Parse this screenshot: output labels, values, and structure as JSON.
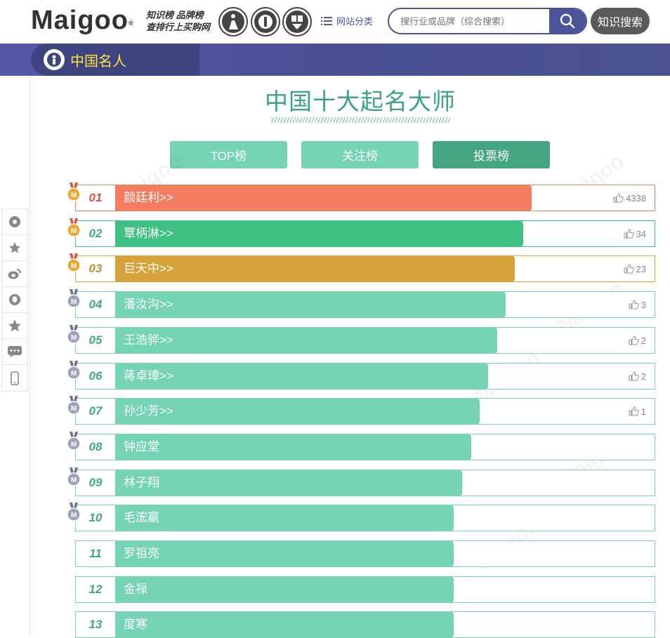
{
  "header": {
    "logo_text": "Maigoo",
    "logo_mark": "®",
    "slogan_line1": "知识榜  品牌榜",
    "slogan_line2": "查排行上买购网",
    "category_label": "网站分类",
    "search_placeholder": "搜行业或品牌（综合搜索）",
    "search_button_label": "知识搜索"
  },
  "nav": {
    "section_title": "中国名人"
  },
  "page": {
    "title": "中国十大起名大师",
    "tabs": [
      {
        "label": "TOP榜",
        "active": false
      },
      {
        "label": "关注榜",
        "active": false
      },
      {
        "label": "投票榜",
        "active": true
      }
    ]
  },
  "ranking": [
    {
      "rank": "01",
      "name": "颜廷利>>",
      "votes": "4338",
      "color": "#f47c61",
      "text_color": "#d9583d",
      "border": "#f47c61",
      "bar_fraction": 0.72,
      "medal": "gold"
    },
    {
      "rank": "02",
      "name": "覃柄淋>>",
      "votes": "34",
      "color": "#3ec182",
      "text_color": "#3ab07a",
      "border": "#3ec182",
      "bar_fraction": 0.705,
      "medal": "gold"
    },
    {
      "rank": "03",
      "name": "巨天中>>",
      "votes": "23",
      "color": "#d8a23b",
      "text_color": "#c58f2e",
      "border": "#d8a23b",
      "bar_fraction": 0.69,
      "medal": "gold"
    },
    {
      "rank": "04",
      "name": "潘汝沟>>",
      "votes": "3",
      "color": "#74d3b4",
      "text_color": "#3ea98a",
      "border": "#74d3b4",
      "bar_fraction": 0.675,
      "medal": "silver"
    },
    {
      "rank": "05",
      "name": "王浩骅>>",
      "votes": "2",
      "color": "#74d3b4",
      "text_color": "#3ea98a",
      "border": "#74d3b4",
      "bar_fraction": 0.66,
      "medal": "silver"
    },
    {
      "rank": "06",
      "name": "蒋卓璋>>",
      "votes": "2",
      "color": "#74d3b4",
      "text_color": "#3ea98a",
      "border": "#74d3b4",
      "bar_fraction": 0.645,
      "medal": "silver"
    },
    {
      "rank": "07",
      "name": "孙少芳>>",
      "votes": "1",
      "color": "#74d3b4",
      "text_color": "#3ea98a",
      "border": "#74d3b4",
      "bar_fraction": 0.63,
      "medal": "silver"
    },
    {
      "rank": "08",
      "name": "钟应堂",
      "votes": "",
      "color": "#74d3b4",
      "text_color": "#3ea98a",
      "border": "#74d3b4",
      "bar_fraction": 0.615,
      "medal": "silver"
    },
    {
      "rank": "09",
      "name": "林子翔",
      "votes": "",
      "color": "#74d3b4",
      "text_color": "#3ea98a",
      "border": "#74d3b4",
      "bar_fraction": 0.6,
      "medal": "silver"
    },
    {
      "rank": "10",
      "name": "毛浤嬴",
      "votes": "",
      "color": "#74d3b4",
      "text_color": "#3ea98a",
      "border": "#74d3b4",
      "bar_fraction": 0.585,
      "medal": "silver"
    },
    {
      "rank": "11",
      "name": "罗祖亮",
      "votes": "",
      "color": "#74d3b4",
      "text_color": "#3ea98a",
      "border": "#74d3b4",
      "bar_fraction": 0.585,
      "medal": "none"
    },
    {
      "rank": "12",
      "name": "金禄",
      "votes": "",
      "color": "#74d3b4",
      "text_color": "#3ea98a",
      "border": "#74d3b4",
      "bar_fraction": 0.585,
      "medal": "none"
    },
    {
      "rank": "13",
      "name": "度寒",
      "votes": "",
      "color": "#74d3b4",
      "text_color": "#3ea98a",
      "border": "#74d3b4",
      "bar_fraction": 0.585,
      "medal": "none"
    }
  ],
  "sidebar": {
    "icons": [
      "qzone-icon",
      "favorite-star-icon",
      "weibo-icon",
      "qq-icon",
      "star-icon",
      "wechat-icon",
      "mobile-icon"
    ]
  },
  "colors": {
    "brand_purple": "#4b5399",
    "accent_green": "#3aa57c",
    "tab_light": "#74d3b4",
    "tab_active": "#43a680",
    "nav_title": "#ffe23d"
  }
}
